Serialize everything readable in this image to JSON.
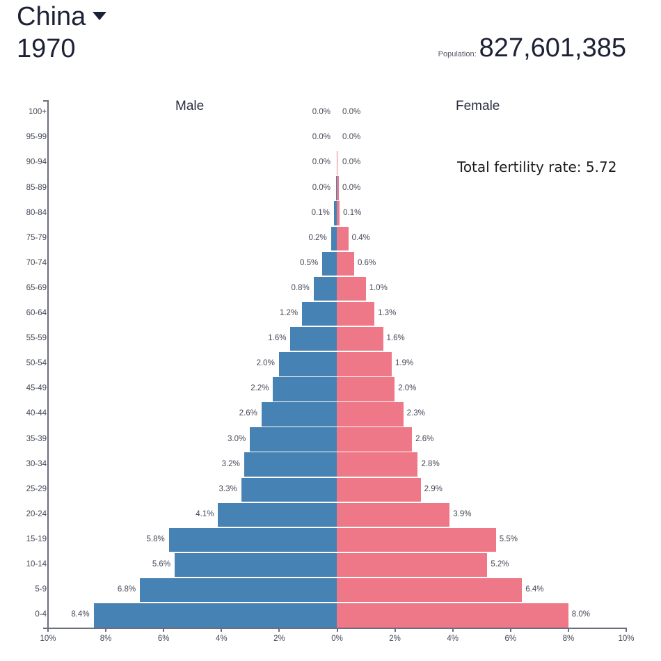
{
  "header": {
    "country": "China",
    "year": "1970",
    "population_label": "Population:",
    "population_value": "827,601,385"
  },
  "labels": {
    "male": "Male",
    "female": "Female",
    "fertility": "Total fertility rate: 5.72"
  },
  "colors": {
    "male": "#4682b4",
    "female": "#ee7887",
    "axis": "#6b6e7e"
  },
  "chart_data": {
    "type": "bar",
    "subtype": "population-pyramid",
    "title": "China 1970",
    "categories": [
      "100+",
      "95-99",
      "90-94",
      "85-89",
      "80-84",
      "75-79",
      "70-74",
      "65-69",
      "60-64",
      "55-59",
      "50-54",
      "45-49",
      "40-44",
      "35-39",
      "30-34",
      "25-29",
      "20-24",
      "15-19",
      "10-14",
      "5-9",
      "0-4"
    ],
    "series": [
      {
        "name": "Male",
        "values": [
          0.0,
          0.0,
          0.0,
          0.0,
          0.1,
          0.2,
          0.5,
          0.8,
          1.2,
          1.6,
          2.0,
          2.2,
          2.6,
          3.0,
          3.2,
          3.3,
          4.1,
          5.8,
          5.6,
          6.8,
          8.4
        ],
        "labels": [
          "0.0%",
          "0.0%",
          "0.0%",
          "0.0%",
          "0.1%",
          "0.2%",
          "0.5%",
          "0.8%",
          "1.2%",
          "1.6%",
          "2.0%",
          "2.2%",
          "2.6%",
          "3.0%",
          "3.2%",
          "3.3%",
          "4.1%",
          "5.8%",
          "5.6%",
          "6.8%",
          "8.4%"
        ]
      },
      {
        "name": "Female",
        "values": [
          0.0,
          0.0,
          0.0,
          0.0,
          0.1,
          0.4,
          0.6,
          1.0,
          1.3,
          1.6,
          1.9,
          2.0,
          2.3,
          2.6,
          2.8,
          2.9,
          3.9,
          5.5,
          5.2,
          6.4,
          8.0
        ],
        "labels": [
          "0.0%",
          "0.0%",
          "0.0%",
          "0.0%",
          "0.1%",
          "0.4%",
          "0.6%",
          "1.0%",
          "1.3%",
          "1.6%",
          "1.9%",
          "2.0%",
          "2.3%",
          "2.6%",
          "2.8%",
          "2.9%",
          "3.9%",
          "5.5%",
          "5.2%",
          "6.4%",
          "8.0%"
        ]
      }
    ],
    "xlabel": "",
    "ylabel": "",
    "x_ticks": [
      "10%",
      "8%",
      "6%",
      "4%",
      "2%",
      "0%",
      "2%",
      "4%",
      "6%",
      "8%",
      "10%"
    ],
    "xlim": [
      -10,
      10
    ],
    "grid": false,
    "legend": "Male (left), Female (right) labels at top",
    "annotations": [
      "Total fertility rate: 5.72",
      "Population: 827,601,385"
    ]
  }
}
